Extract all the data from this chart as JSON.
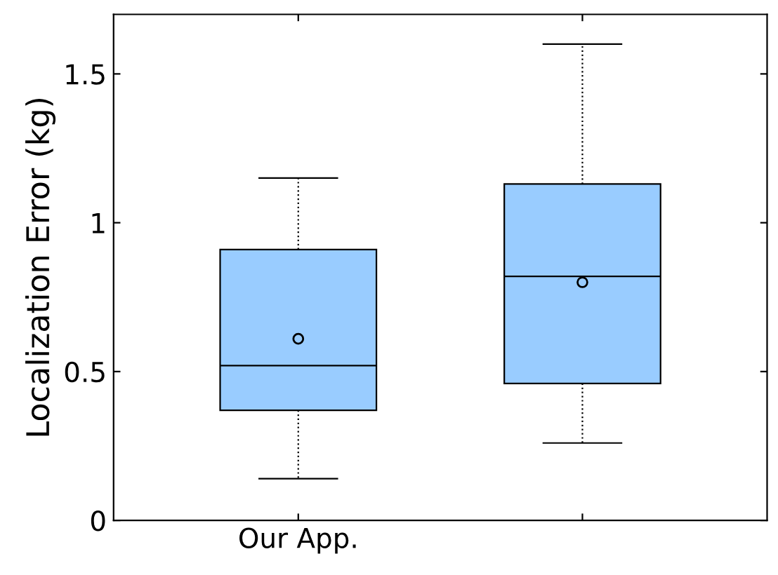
{
  "chart_data": {
    "type": "box",
    "ylabel": "Localization Error (kg)",
    "categories": [
      "Our App.",
      null
    ],
    "boxes": [
      {
        "low": 0.14,
        "q1": 0.37,
        "median": 0.52,
        "q3": 0.91,
        "high": 1.15,
        "mean": 0.61
      },
      {
        "low": 0.26,
        "q1": 0.46,
        "median": 0.82,
        "q3": 1.13,
        "high": 1.6,
        "mean": 0.8
      }
    ],
    "color": "#99ccff",
    "ylim": [
      0,
      1.7
    ],
    "yticks": [
      0,
      0.5,
      1,
      1.5
    ],
    "grid": false,
    "marker": "circle"
  }
}
